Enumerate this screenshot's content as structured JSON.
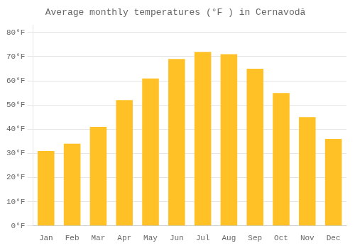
{
  "chart_data": {
    "type": "bar",
    "title": "Average monthly temperatures (°F ) in Cernavodă",
    "categories": [
      "Jan",
      "Feb",
      "Mar",
      "Apr",
      "May",
      "Jun",
      "Jul",
      "Aug",
      "Sep",
      "Oct",
      "Nov",
      "Dec"
    ],
    "values": [
      31,
      34,
      41,
      52,
      61,
      69,
      72,
      71,
      65,
      55,
      45,
      36
    ],
    "color": "#FFC125",
    "ylim": [
      0,
      83
    ],
    "yticks": [
      {
        "value": 0,
        "label": "0°F"
      },
      {
        "value": 10,
        "label": "10°F"
      },
      {
        "value": 20,
        "label": "20°F"
      },
      {
        "value": 30,
        "label": "30°F"
      },
      {
        "value": 40,
        "label": "40°F"
      },
      {
        "value": 50,
        "label": "50°F"
      },
      {
        "value": 60,
        "label": "60°F"
      },
      {
        "value": 70,
        "label": "70°F"
      },
      {
        "value": 80,
        "label": "80°F"
      }
    ],
    "grid": true
  }
}
